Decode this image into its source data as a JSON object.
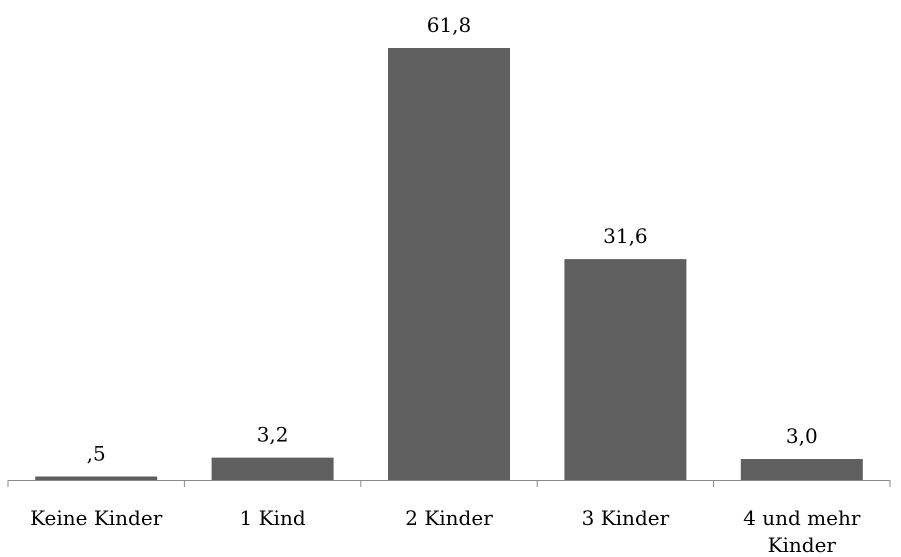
{
  "chart_data": {
    "type": "bar",
    "title": "",
    "xlabel": "",
    "ylabel": "",
    "categories": [
      "Keine Kinder",
      "1 Kind",
      "2 Kinder",
      "3 Kinder",
      "4 und mehr Kinder"
    ],
    "category_lines": [
      [
        "Keine Kinder"
      ],
      [
        "1 Kind"
      ],
      [
        "2 Kinder"
      ],
      [
        "3 Kinder"
      ],
      [
        "4 und mehr",
        "Kinder"
      ]
    ],
    "values": [
      0.5,
      3.2,
      61.8,
      31.6,
      3.0
    ],
    "value_labels": [
      ",5",
      "3,2",
      "61,8",
      "31,6",
      "3,0"
    ],
    "ylim": [
      0,
      61.8
    ],
    "grid": false,
    "legend": "none",
    "bar_color": "#5f5f5f",
    "axis_color": "#8a8a8a"
  }
}
